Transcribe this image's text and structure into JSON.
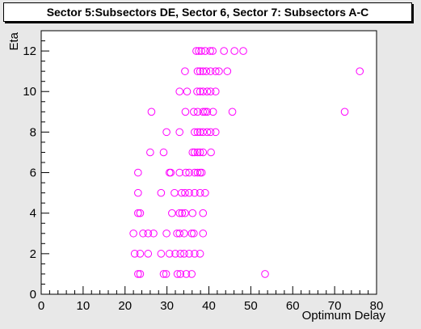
{
  "chart_data": {
    "type": "scatter",
    "title": "Sector 5:Subsectors DE, Sector 6, Sector 7: Subsectors A-C",
    "xlabel": "Optimum Delay",
    "ylabel": "Eta",
    "xlim": [
      0,
      80
    ],
    "ylim": [
      0,
      13
    ],
    "x_ticks": [
      "0",
      "10",
      "20",
      "30",
      "40",
      "50",
      "60",
      "70",
      "80"
    ],
    "y_ticks": [
      "0",
      "2",
      "4",
      "6",
      "8",
      "10",
      "12"
    ],
    "grid": false,
    "marker_color": "#ff00ff",
    "points": [
      {
        "x": 23.1,
        "y": 1
      },
      {
        "x": 23.6,
        "y": 1
      },
      {
        "x": 29.2,
        "y": 1
      },
      {
        "x": 29.8,
        "y": 1
      },
      {
        "x": 32.5,
        "y": 1
      },
      {
        "x": 33.2,
        "y": 1
      },
      {
        "x": 34.6,
        "y": 1
      },
      {
        "x": 35.9,
        "y": 1
      },
      {
        "x": 53.4,
        "y": 1
      },
      {
        "x": 22.3,
        "y": 2
      },
      {
        "x": 23.6,
        "y": 2
      },
      {
        "x": 25.5,
        "y": 2
      },
      {
        "x": 28.6,
        "y": 2
      },
      {
        "x": 30.6,
        "y": 2
      },
      {
        "x": 32.0,
        "y": 2
      },
      {
        "x": 33.2,
        "y": 2
      },
      {
        "x": 34.1,
        "y": 2
      },
      {
        "x": 35.3,
        "y": 2
      },
      {
        "x": 36.6,
        "y": 2
      },
      {
        "x": 37.9,
        "y": 2
      },
      {
        "x": 22.0,
        "y": 3
      },
      {
        "x": 24.3,
        "y": 3
      },
      {
        "x": 25.5,
        "y": 3
      },
      {
        "x": 26.8,
        "y": 3
      },
      {
        "x": 29.9,
        "y": 3
      },
      {
        "x": 32.4,
        "y": 3
      },
      {
        "x": 33.0,
        "y": 3
      },
      {
        "x": 34.1,
        "y": 3
      },
      {
        "x": 35.9,
        "y": 3
      },
      {
        "x": 36.4,
        "y": 3
      },
      {
        "x": 38.6,
        "y": 3
      },
      {
        "x": 23.1,
        "y": 4
      },
      {
        "x": 23.6,
        "y": 4
      },
      {
        "x": 31.2,
        "y": 4
      },
      {
        "x": 33.0,
        "y": 4
      },
      {
        "x": 33.6,
        "y": 4
      },
      {
        "x": 34.3,
        "y": 4
      },
      {
        "x": 36.1,
        "y": 4
      },
      {
        "x": 38.6,
        "y": 4
      },
      {
        "x": 23.1,
        "y": 5
      },
      {
        "x": 28.6,
        "y": 5
      },
      {
        "x": 31.8,
        "y": 5
      },
      {
        "x": 33.5,
        "y": 5
      },
      {
        "x": 34.3,
        "y": 5
      },
      {
        "x": 35.3,
        "y": 5
      },
      {
        "x": 36.6,
        "y": 5
      },
      {
        "x": 37.9,
        "y": 5
      },
      {
        "x": 39.1,
        "y": 5
      },
      {
        "x": 23.1,
        "y": 6
      },
      {
        "x": 30.6,
        "y": 6
      },
      {
        "x": 30.9,
        "y": 6
      },
      {
        "x": 33.0,
        "y": 6
      },
      {
        "x": 34.5,
        "y": 6
      },
      {
        "x": 35.3,
        "y": 6
      },
      {
        "x": 36.6,
        "y": 6
      },
      {
        "x": 37.3,
        "y": 6
      },
      {
        "x": 37.9,
        "y": 6
      },
      {
        "x": 38.3,
        "y": 6
      },
      {
        "x": 26.0,
        "y": 7
      },
      {
        "x": 29.2,
        "y": 7
      },
      {
        "x": 36.1,
        "y": 7
      },
      {
        "x": 36.6,
        "y": 7
      },
      {
        "x": 37.3,
        "y": 7
      },
      {
        "x": 37.9,
        "y": 7
      },
      {
        "x": 38.6,
        "y": 7
      },
      {
        "x": 40.5,
        "y": 7
      },
      {
        "x": 29.9,
        "y": 8
      },
      {
        "x": 33.0,
        "y": 8
      },
      {
        "x": 36.6,
        "y": 8
      },
      {
        "x": 37.3,
        "y": 8
      },
      {
        "x": 37.9,
        "y": 8
      },
      {
        "x": 38.6,
        "y": 8
      },
      {
        "x": 39.6,
        "y": 8
      },
      {
        "x": 40.4,
        "y": 8
      },
      {
        "x": 41.6,
        "y": 8
      },
      {
        "x": 26.3,
        "y": 9
      },
      {
        "x": 34.4,
        "y": 9
      },
      {
        "x": 36.4,
        "y": 9
      },
      {
        "x": 37.3,
        "y": 9
      },
      {
        "x": 38.6,
        "y": 9
      },
      {
        "x": 39.1,
        "y": 9
      },
      {
        "x": 39.6,
        "y": 9
      },
      {
        "x": 41.0,
        "y": 9
      },
      {
        "x": 45.6,
        "y": 9
      },
      {
        "x": 72.4,
        "y": 9
      },
      {
        "x": 33.0,
        "y": 10
      },
      {
        "x": 34.8,
        "y": 10
      },
      {
        "x": 37.2,
        "y": 10
      },
      {
        "x": 37.9,
        "y": 10
      },
      {
        "x": 38.6,
        "y": 10
      },
      {
        "x": 39.6,
        "y": 10
      },
      {
        "x": 40.4,
        "y": 10
      },
      {
        "x": 41.6,
        "y": 10
      },
      {
        "x": 34.3,
        "y": 11
      },
      {
        "x": 37.3,
        "y": 11
      },
      {
        "x": 37.9,
        "y": 11
      },
      {
        "x": 38.6,
        "y": 11
      },
      {
        "x": 39.4,
        "y": 11
      },
      {
        "x": 40.4,
        "y": 11
      },
      {
        "x": 41.6,
        "y": 11
      },
      {
        "x": 42.4,
        "y": 11
      },
      {
        "x": 44.4,
        "y": 11
      },
      {
        "x": 76.0,
        "y": 11
      },
      {
        "x": 37.0,
        "y": 12
      },
      {
        "x": 37.6,
        "y": 12
      },
      {
        "x": 38.2,
        "y": 12
      },
      {
        "x": 39.1,
        "y": 12
      },
      {
        "x": 40.3,
        "y": 12
      },
      {
        "x": 40.9,
        "y": 12
      },
      {
        "x": 43.6,
        "y": 12
      },
      {
        "x": 46.1,
        "y": 12
      },
      {
        "x": 48.2,
        "y": 12
      }
    ]
  }
}
